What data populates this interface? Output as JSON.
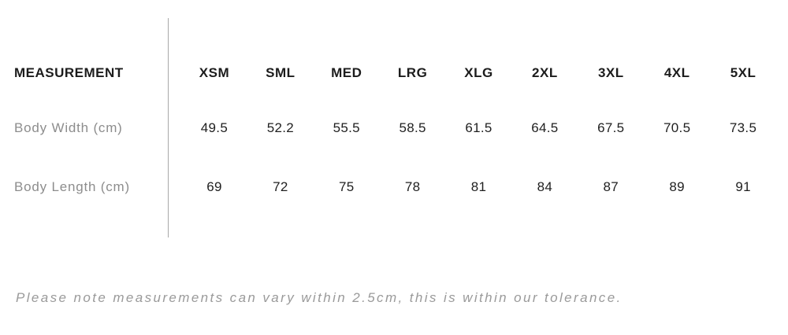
{
  "chart_data": {
    "type": "table",
    "header": [
      "MEASUREMENT",
      "XSM",
      "SML",
      "MED",
      "LRG",
      "XLG",
      "2XL",
      "3XL",
      "4XL",
      "5XL"
    ],
    "rows": [
      {
        "label": "Body Width (cm)",
        "values": [
          49.5,
          52.2,
          55.5,
          58.5,
          61.5,
          64.5,
          67.5,
          70.5,
          73.5
        ]
      },
      {
        "label": "Body Length (cm)",
        "values": [
          69,
          72,
          75,
          78,
          81,
          84,
          87,
          89,
          91
        ]
      }
    ],
    "note": "Please note measurements can vary within 2.5cm, this is within our tolerance."
  },
  "colors": {
    "header_text": "#1c1c1c",
    "value_text": "#1f1f1f",
    "label_text": "#8d8d8d",
    "note_text": "#9a9a9a",
    "divider": "#a8a8a8",
    "background": "#ffffff"
  }
}
